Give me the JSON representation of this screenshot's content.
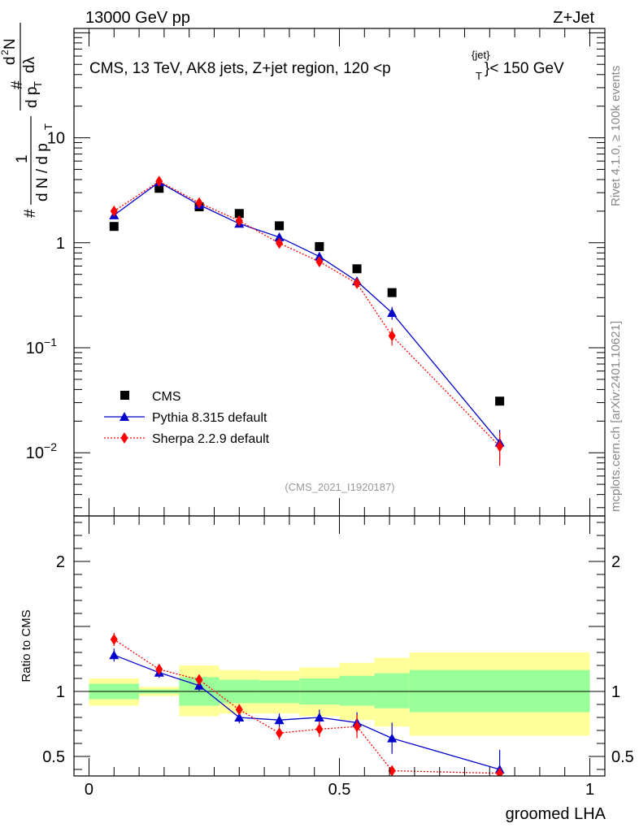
{
  "header": {
    "left": "13000 GeV pp",
    "right": "Z+Jet"
  },
  "side": {
    "rivet": "Rivet 4.1.0, ≥ 100k events",
    "mcplots": "mcplots.cern.ch [arXiv:2401.10621]"
  },
  "labels": {
    "title": "CMS, 13 TeV, AK8 jets, Z+jet region, 120 <p",
    "title_sup": "{jet}",
    "title_sub": "T",
    "title_tail": "}< 150 GeV",
    "analysis": "(CMS_2021_I1920187)",
    "ratio_ylabel": "Ratio to CMS",
    "xlabel": "groomed LHA",
    "ylabel_hash": "#",
    "ylabel_frac1_num": "1",
    "ylabel_frac1_den": "d N / d p",
    "ylabel_sub": "T",
    "ylabel_frac2_num_hash": "#",
    "ylabel_frac2_num": "d",
    "ylabel_frac2_num_sup": "2",
    "ylabel_frac2_num_N": "N",
    "ylabel_frac2_den": "d p",
    "ylabel_frac2_den_tail": "dλ"
  },
  "legend": [
    {
      "label": "CMS",
      "color": "#000000",
      "marker": "square"
    },
    {
      "label": "Pythia 8.315 default",
      "color": "#0000cc",
      "marker": "triangle"
    },
    {
      "label": "Sherpa 2.2.9 default",
      "color": "#ff0000",
      "marker": "diamond"
    }
  ],
  "chart_data": {
    "type": "line",
    "xlabel": "groomed LHA",
    "ylabel": "1/(dN/dpT) d2N/(dpT dλ)",
    "xlim": [
      -0.03,
      1.03
    ],
    "main_yscale": "log",
    "main_ylim": [
      0.0025,
      110
    ],
    "main_yticks": [
      {
        "value": 0.01,
        "base": "10",
        "exp": "−2"
      },
      {
        "value": 0.1,
        "base": "10",
        "exp": "−1"
      },
      {
        "value": 1,
        "base": "1",
        "exp": ""
      },
      {
        "value": 10,
        "base": "10",
        "exp": ""
      }
    ],
    "xticks": [
      {
        "value": 0,
        "label": "0"
      },
      {
        "value": 0.5,
        "label": "0.5"
      },
      {
        "value": 1,
        "label": "1"
      }
    ],
    "ratio_ylim": [
      0.35,
      2.35
    ],
    "ratio_yticks": [
      {
        "value": 0.5,
        "label": "0.5"
      },
      {
        "value": 1,
        "label": "1"
      },
      {
        "value": 2,
        "label": "2"
      }
    ],
    "bin_edges": [
      0,
      0.1,
      0.18,
      0.26,
      0.34,
      0.42,
      0.5,
      0.57,
      0.64,
      1.0
    ],
    "series": [
      {
        "name": "CMS",
        "x": [
          0.05,
          0.14,
          0.22,
          0.3,
          0.38,
          0.46,
          0.535,
          0.605,
          0.82
        ],
        "y": [
          1.43,
          3.3,
          2.2,
          1.9,
          1.45,
          0.92,
          0.565,
          0.335,
          0.031
        ]
      },
      {
        "name": "Pythia 8.315 default",
        "x": [
          0.05,
          0.14,
          0.22,
          0.3,
          0.38,
          0.46,
          0.535,
          0.605,
          0.82
        ],
        "y": [
          1.83,
          3.78,
          2.3,
          1.52,
          1.13,
          0.74,
          0.43,
          0.215,
          0.0125
        ],
        "yerr": [
          0.07,
          0.12,
          0.08,
          0.06,
          0.06,
          0.05,
          0.035,
          0.03,
          0.004
        ]
      },
      {
        "name": "Sherpa 2.2.9 default",
        "x": [
          0.05,
          0.14,
          0.22,
          0.3,
          0.38,
          0.46,
          0.535,
          0.605,
          0.82
        ],
        "y": [
          2.0,
          3.85,
          2.4,
          1.62,
          0.99,
          0.66,
          0.41,
          0.13,
          0.0115
        ],
        "yerr": [
          0.08,
          0.12,
          0.09,
          0.07,
          0.06,
          0.05,
          0.04,
          0.025,
          0.004
        ]
      }
    ],
    "ratio_series": [
      {
        "name": "Pythia 8.315 default",
        "x": [
          0.05,
          0.14,
          0.22,
          0.3,
          0.38,
          0.46,
          0.535,
          0.605,
          0.82
        ],
        "y": [
          1.28,
          1.145,
          1.045,
          0.8,
          0.78,
          0.8,
          0.76,
          0.64,
          0.4
        ],
        "yerr": [
          0.05,
          0.04,
          0.04,
          0.045,
          0.05,
          0.06,
          0.08,
          0.12,
          0.15
        ]
      },
      {
        "name": "Sherpa 2.2.9 default",
        "x": [
          0.05,
          0.14,
          0.22,
          0.3,
          0.38,
          0.46,
          0.535,
          0.605,
          0.82
        ],
        "y": [
          1.4,
          1.17,
          1.09,
          0.86,
          0.68,
          0.71,
          0.73,
          0.39,
          0.37
        ],
        "yerr": [
          0.05,
          0.04,
          0.04,
          0.04,
          0.05,
          0.06,
          0.09,
          0.0,
          0.0
        ]
      }
    ],
    "uncertainty_bands": {
      "inner": [
        {
          "x": [
            0.0,
            0.1
          ],
          "lo": 0.94,
          "hi": 1.06
        },
        {
          "x": [
            0.1,
            0.18
          ],
          "lo": 0.985,
          "hi": 1.015
        },
        {
          "x": [
            0.18,
            0.26
          ],
          "lo": 0.89,
          "hi": 1.11
        },
        {
          "x": [
            0.26,
            0.34
          ],
          "lo": 0.91,
          "hi": 1.09
        },
        {
          "x": [
            0.34,
            0.42
          ],
          "lo": 0.91,
          "hi": 1.085
        },
        {
          "x": [
            0.42,
            0.5
          ],
          "lo": 0.9,
          "hi": 1.1
        },
        {
          "x": [
            0.5,
            0.57
          ],
          "lo": 0.89,
          "hi": 1.12
        },
        {
          "x": [
            0.57,
            0.64
          ],
          "lo": 0.87,
          "hi": 1.14
        },
        {
          "x": [
            0.64,
            1.0
          ],
          "lo": 0.84,
          "hi": 1.165
        }
      ],
      "outer": [
        {
          "x": [
            0.0,
            0.1
          ],
          "lo": 0.89,
          "hi": 1.1
        },
        {
          "x": [
            0.1,
            0.18
          ],
          "lo": 0.965,
          "hi": 1.035
        },
        {
          "x": [
            0.18,
            0.26
          ],
          "lo": 0.81,
          "hi": 1.2
        },
        {
          "x": [
            0.26,
            0.34
          ],
          "lo": 0.83,
          "hi": 1.165
        },
        {
          "x": [
            0.34,
            0.42
          ],
          "lo": 0.83,
          "hi": 1.16
        },
        {
          "x": [
            0.42,
            0.5
          ],
          "lo": 0.81,
          "hi": 1.185
        },
        {
          "x": [
            0.5,
            0.57
          ],
          "lo": 0.78,
          "hi": 1.22
        },
        {
          "x": [
            0.57,
            0.64
          ],
          "lo": 0.73,
          "hi": 1.26
        },
        {
          "x": [
            0.64,
            1.0
          ],
          "lo": 0.66,
          "hi": 1.3
        }
      ]
    }
  }
}
